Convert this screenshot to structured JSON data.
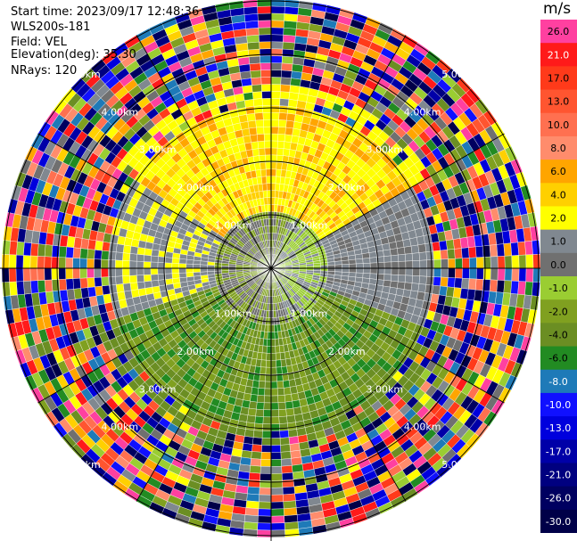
{
  "header": {
    "start_time": "Start time: 2023/09/17 12:48:36",
    "instrument": "WLS200s-181",
    "field": "Field: VEL",
    "elevation": "Elevation(deg): 35.30",
    "nrays": "NRays: 120"
  },
  "colorbar": {
    "unit": "m/s",
    "levels": [
      {
        "label": "26.0",
        "color": "#ff40a0"
      },
      {
        "label": "21.0",
        "color": "#ff1a1a"
      },
      {
        "label": "17.0",
        "color": "#ff3a1a"
      },
      {
        "label": "13.0",
        "color": "#ff5530"
      },
      {
        "label": "10.0",
        "color": "#ff7050"
      },
      {
        "label": "8.0",
        "color": "#ff8c6c"
      },
      {
        "label": "6.0",
        "color": "#ffa500"
      },
      {
        "label": "4.0",
        "color": "#ffd000"
      },
      {
        "label": "2.0",
        "color": "#ffff00"
      },
      {
        "label": "1.0",
        "color": "#808890"
      },
      {
        "label": "0.0",
        "color": "#707070"
      },
      {
        "label": "-1.0",
        "color": "#9acd32"
      },
      {
        "label": "-2.0",
        "color": "#80a020"
      },
      {
        "label": "-4.0",
        "color": "#6b8e23"
      },
      {
        "label": "-6.0",
        "color": "#228b22"
      },
      {
        "label": "-8.0",
        "color": "#1e7ab8"
      },
      {
        "label": "-10.0",
        "color": "#1010ff"
      },
      {
        "label": "-13.0",
        "color": "#0000dd"
      },
      {
        "label": "-17.0",
        "color": "#0000a8"
      },
      {
        "label": "-21.0",
        "color": "#000080"
      },
      {
        "label": "-26.0",
        "color": "#000060"
      },
      {
        "label": "-30.0",
        "color": "#000048"
      }
    ]
  },
  "chart_data": {
    "type": "heatmap",
    "projection": "polar-ppi",
    "field": "VEL",
    "nrays": 120,
    "ring_labels": [
      "1.00km",
      "2.00km",
      "3.00km",
      "4.00km",
      "5.00km"
    ],
    "ring_label_positions": [
      "upper-left",
      "upper-right",
      "lower-left",
      "lower-right"
    ],
    "note_colors": {
      "gridline": "#000000",
      "ring_text": "#ffffff"
    }
  }
}
